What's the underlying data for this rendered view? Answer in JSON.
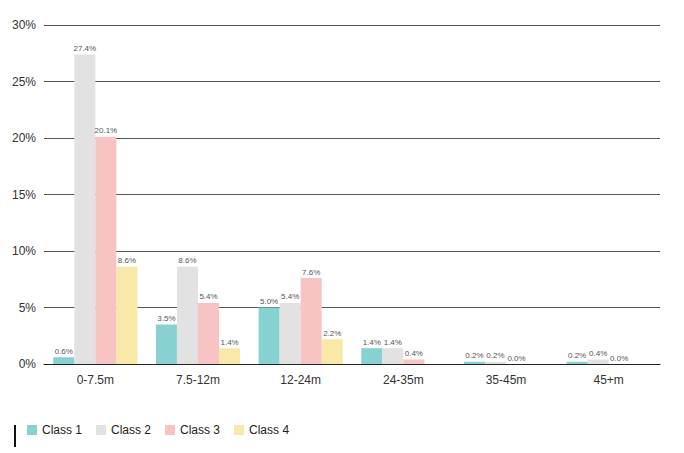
{
  "chart_data": {
    "type": "bar",
    "categories": [
      "0-7.5m",
      "7.5-12m",
      "12-24m",
      "24-35m",
      "35-45m",
      "45+m"
    ],
    "series": [
      {
        "name": "Class 1",
        "color": "#88d1d2",
        "values": [
          0.6,
          3.5,
          5.0,
          1.4,
          0.2,
          0.2
        ],
        "value_labels": [
          "0.6%",
          "3.5%",
          "5.0%",
          "1.4%",
          "0.2%",
          "0.2%"
        ]
      },
      {
        "name": "Class 2",
        "color": "#e2e2e2",
        "values": [
          27.4,
          8.6,
          5.4,
          1.4,
          0.2,
          0.4
        ],
        "value_labels": [
          "27.4%",
          "8.6%",
          "5.4%",
          "1.4%",
          "0.2%",
          "0.4%"
        ]
      },
      {
        "name": "Class 3",
        "color": "#f8c3c3",
        "values": [
          20.1,
          5.4,
          7.6,
          0.4,
          0.0,
          0.0
        ],
        "value_labels": [
          "20.1%",
          "5.4%",
          "7.6%",
          "0.4%",
          "0.0%",
          "0.0%"
        ]
      },
      {
        "name": "Class 4",
        "color": "#f8e9a8",
        "values": [
          8.6,
          1.4,
          2.2,
          null,
          null,
          null
        ],
        "value_labels": [
          "8.6%",
          "1.4%",
          "2.2%",
          null,
          null,
          null
        ]
      }
    ],
    "ylim": [
      0,
      30
    ],
    "yticks": [
      {
        "value": 0,
        "label": "0%"
      },
      {
        "value": 5,
        "label": "5%"
      },
      {
        "value": 10,
        "label": "10%"
      },
      {
        "value": 15,
        "label": "15%"
      },
      {
        "value": 20,
        "label": "20%"
      },
      {
        "value": 25,
        "label": "25%"
      },
      {
        "value": 30,
        "label": "30%"
      }
    ],
    "grid": true,
    "data_labels": true,
    "legend": "bottom-left"
  }
}
